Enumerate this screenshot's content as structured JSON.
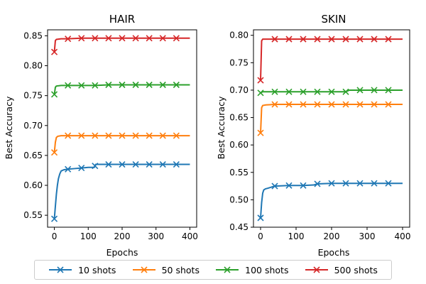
{
  "legend": {
    "entries": [
      "10 shots",
      "50 shots",
      "100 shots",
      "500 shots"
    ],
    "colors": [
      "#1f77b4",
      "#ff7f0e",
      "#2ca02c",
      "#d62728"
    ]
  },
  "chart_data": [
    {
      "type": "line",
      "title": "HAIR",
      "xlabel": "Epochs",
      "ylabel": "Best Accuracy",
      "xlim": [
        -20,
        420
      ],
      "ylim": [
        0.53,
        0.86
      ],
      "xticks": [
        0,
        100,
        200,
        300,
        400
      ],
      "yticks": [
        0.55,
        0.6,
        0.65,
        0.7,
        0.75,
        0.8,
        0.85
      ],
      "marker_epochs": [
        0,
        40,
        80,
        120,
        160,
        200,
        240,
        280,
        320,
        360
      ],
      "series": [
        {
          "name": "10 shots",
          "color": "#1f77b4",
          "x": [
            0,
            3,
            6,
            9,
            12,
            16,
            20,
            28,
            40,
            60,
            80,
            100,
            118,
            122,
            160,
            200,
            240,
            280,
            320,
            360,
            400
          ],
          "y": [
            0.544,
            0.565,
            0.585,
            0.6,
            0.611,
            0.619,
            0.624,
            0.626,
            0.627,
            0.628,
            0.629,
            0.63,
            0.63,
            0.635,
            0.635,
            0.635,
            0.635,
            0.635,
            0.635,
            0.635,
            0.635
          ]
        },
        {
          "name": "50 shots",
          "color": "#ff7f0e",
          "x": [
            0,
            3,
            6,
            10,
            20,
            40,
            80,
            120,
            160,
            200,
            240,
            280,
            320,
            360,
            400
          ],
          "y": [
            0.655,
            0.672,
            0.68,
            0.682,
            0.683,
            0.683,
            0.683,
            0.683,
            0.683,
            0.683,
            0.683,
            0.683,
            0.683,
            0.683,
            0.683
          ]
        },
        {
          "name": "100 shots",
          "color": "#2ca02c",
          "x": [
            0,
            3,
            6,
            20,
            40,
            80,
            120,
            160,
            200,
            240,
            280,
            320,
            360,
            400
          ],
          "y": [
            0.752,
            0.764,
            0.766,
            0.767,
            0.767,
            0.767,
            0.767,
            0.768,
            0.768,
            0.768,
            0.768,
            0.768,
            0.768,
            0.768
          ]
        },
        {
          "name": "500 shots",
          "color": "#d62728",
          "x": [
            0,
            3,
            6,
            20,
            40,
            80,
            120,
            160,
            200,
            240,
            280,
            320,
            360,
            400
          ],
          "y": [
            0.823,
            0.842,
            0.844,
            0.845,
            0.845,
            0.846,
            0.846,
            0.846,
            0.846,
            0.846,
            0.846,
            0.846,
            0.846,
            0.846
          ]
        }
      ]
    },
    {
      "type": "line",
      "title": "SKIN",
      "xlabel": "Epochs",
      "ylabel": "Best Accuracy",
      "xlim": [
        -20,
        420
      ],
      "ylim": [
        0.45,
        0.81
      ],
      "xticks": [
        0,
        100,
        200,
        300,
        400
      ],
      "yticks": [
        0.45,
        0.5,
        0.55,
        0.6,
        0.65,
        0.7,
        0.75,
        0.8
      ],
      "marker_epochs": [
        0,
        40,
        80,
        120,
        160,
        200,
        240,
        280,
        320,
        360
      ],
      "series": [
        {
          "name": "10 shots",
          "color": "#1f77b4",
          "x": [
            0,
            3,
            6,
            9,
            14,
            20,
            40,
            80,
            120,
            150,
            160,
            200,
            240,
            280,
            320,
            360,
            400
          ],
          "y": [
            0.467,
            0.495,
            0.512,
            0.518,
            0.52,
            0.521,
            0.525,
            0.526,
            0.526,
            0.527,
            0.529,
            0.53,
            0.53,
            0.53,
            0.53,
            0.53,
            0.53
          ]
        },
        {
          "name": "50 shots",
          "color": "#ff7f0e",
          "x": [
            0,
            3,
            6,
            15,
            40,
            80,
            120,
            160,
            200,
            240,
            280,
            320,
            360,
            400
          ],
          "y": [
            0.622,
            0.668,
            0.672,
            0.673,
            0.674,
            0.674,
            0.674,
            0.674,
            0.674,
            0.674,
            0.674,
            0.674,
            0.674,
            0.674
          ]
        },
        {
          "name": "100 shots",
          "color": "#2ca02c",
          "x": [
            0,
            3,
            6,
            40,
            80,
            120,
            160,
            200,
            240,
            250,
            280,
            320,
            360,
            400
          ],
          "y": [
            0.695,
            0.696,
            0.697,
            0.697,
            0.697,
            0.697,
            0.697,
            0.697,
            0.697,
            0.7,
            0.7,
            0.7,
            0.7,
            0.7
          ]
        },
        {
          "name": "500 shots",
          "color": "#d62728",
          "x": [
            0,
            3,
            6,
            40,
            80,
            120,
            160,
            200,
            240,
            280,
            320,
            360,
            400
          ],
          "y": [
            0.718,
            0.79,
            0.793,
            0.793,
            0.793,
            0.793,
            0.793,
            0.793,
            0.793,
            0.793,
            0.793,
            0.793,
            0.793
          ]
        }
      ]
    }
  ]
}
